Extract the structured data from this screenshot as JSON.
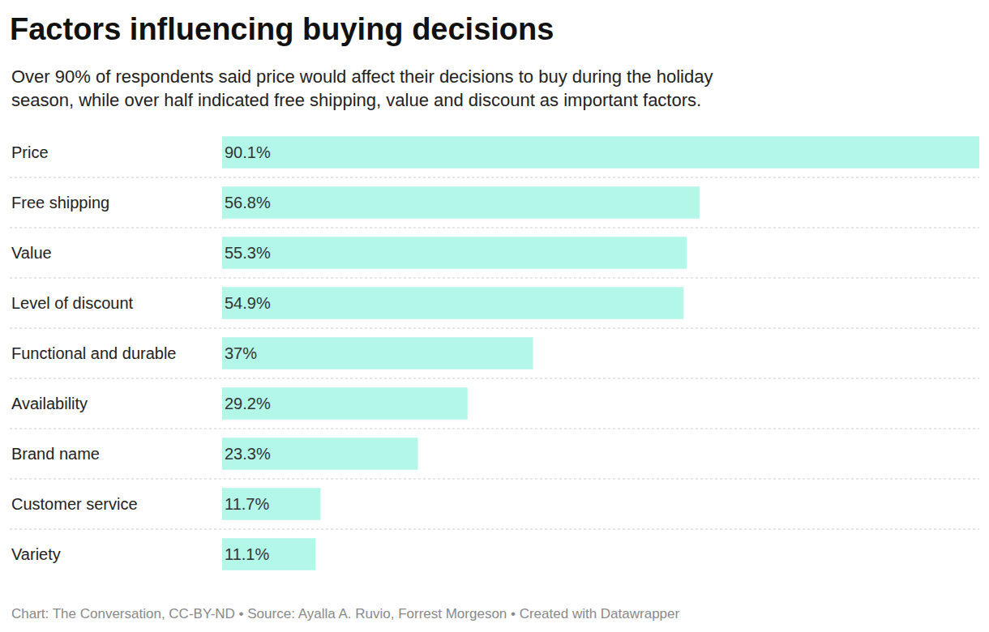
{
  "chart_data": {
    "type": "bar",
    "orientation": "horizontal",
    "title": "Factors influencing buying decisions",
    "subtitle": "Over 90% of respondents said price would affect their decisions to buy during the holiday season, while over half indicated free shipping, value and discount as important factors.",
    "source": "Chart: The Conversation, CC-BY-ND • Source: Ayalla A. Ruvio, Forrest Morgeson • Created with Datawrapper",
    "categories": [
      "Price",
      "Free shipping",
      "Value",
      "Level of discount",
      "Functional and durable",
      "Availability",
      "Brand name",
      "Customer service",
      "Variety"
    ],
    "values": [
      90.1,
      56.8,
      55.3,
      54.9,
      37,
      29.2,
      23.3,
      11.7,
      11.1
    ],
    "value_labels": [
      "90.1%",
      "56.8%",
      "55.3%",
      "54.9%",
      "37%",
      "29.2%",
      "23.3%",
      "11.7%",
      "11.1%"
    ],
    "color": "#b2f7e8",
    "xlim": [
      0,
      90.1
    ],
    "data_labels": true,
    "tick_labels": false
  }
}
